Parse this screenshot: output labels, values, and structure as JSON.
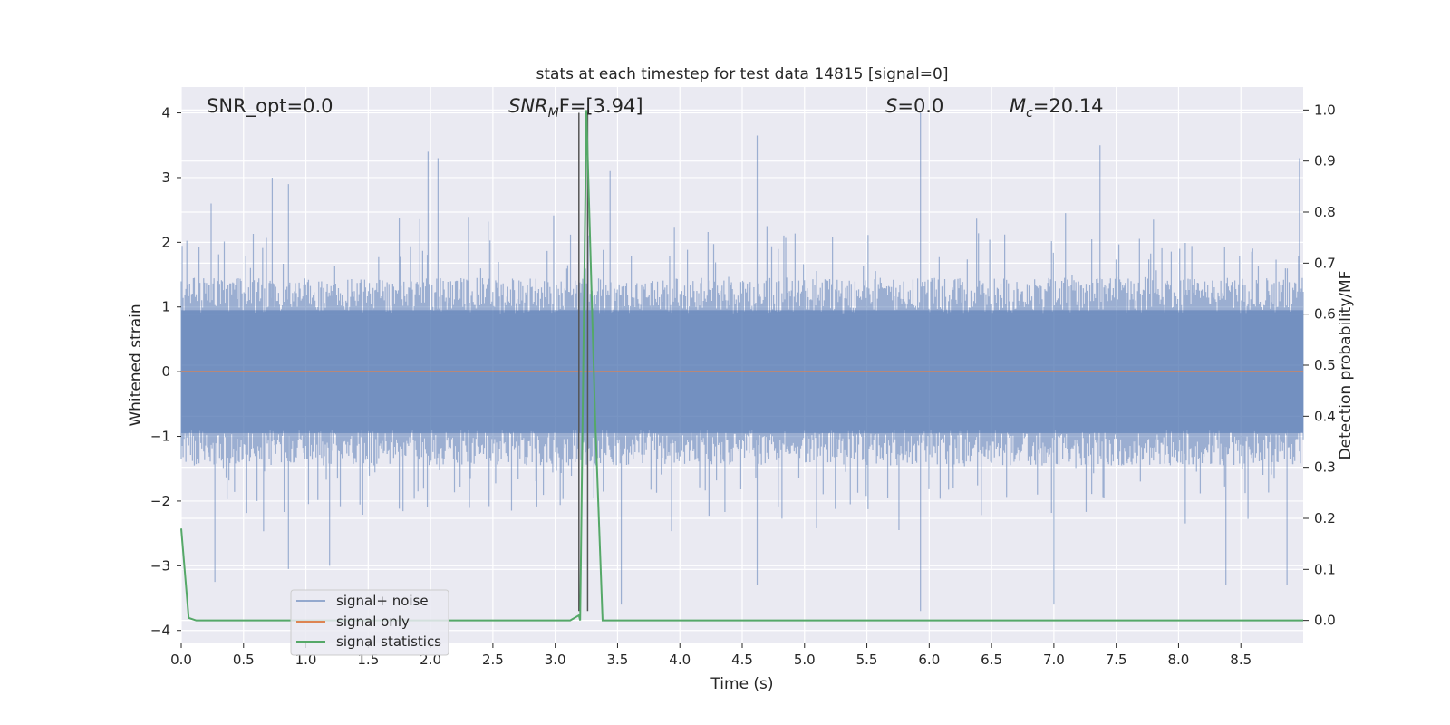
{
  "chart_data": {
    "type": "line",
    "title": "stats at each timestep for test data 14815 [signal=0]",
    "xlabel": "Time (s)",
    "ylabel": "Whitened strain",
    "ylabel_right": "Detection probability/MF",
    "xlim": [
      0.0,
      9.0
    ],
    "ylim": [
      -4.2,
      4.4
    ],
    "ylim_right": [
      -0.045,
      1.045
    ],
    "x_ticks": [
      0.0,
      0.5,
      1.0,
      1.5,
      2.0,
      2.5,
      3.0,
      3.5,
      4.0,
      4.5,
      5.0,
      5.5,
      6.0,
      6.5,
      7.0,
      7.5,
      8.0,
      8.5
    ],
    "x_tick_labels": [
      "0.0",
      "0.5",
      "1.0",
      "1.5",
      "2.0",
      "2.5",
      "3.0",
      "3.5",
      "4.0",
      "4.5",
      "5.0",
      "5.5",
      "6.0",
      "6.5",
      "7.0",
      "7.5",
      "8.0",
      "8.5"
    ],
    "y_ticks": [
      4,
      3,
      2,
      1,
      0,
      -1,
      -2,
      -3,
      -4
    ],
    "y_tick_labels": [
      "4",
      "3",
      "2",
      "1",
      "0",
      "−1",
      "−2",
      "−3",
      "−4"
    ],
    "y_right_ticks": [
      1.0,
      0.9,
      0.8,
      0.7,
      0.6,
      0.5,
      0.4,
      0.3,
      0.2,
      0.1,
      0.0
    ],
    "y_right_tick_labels": [
      "1.0",
      "0.9",
      "0.8",
      "0.7",
      "0.6",
      "0.5",
      "0.4",
      "0.3",
      "0.2",
      "0.1",
      "0.0"
    ],
    "grid": true,
    "legend_position": "lower-left",
    "series": [
      {
        "name": "signal+ noise",
        "color": "#4c72b0",
        "description_values": "dense noise band roughly within ±1.5 with spikes up to about ±4",
        "noise_amplitude": 1.45,
        "peaks": [
          {
            "x": 0.24,
            "y": 2.6
          },
          {
            "x": 0.73,
            "y": 3.0
          },
          {
            "x": 0.86,
            "y": 2.9
          },
          {
            "x": 1.98,
            "y": 3.4
          },
          {
            "x": 2.06,
            "y": 3.3
          },
          {
            "x": 3.44,
            "y": 3.1
          },
          {
            "x": 4.62,
            "y": 3.65
          },
          {
            "x": 5.93,
            "y": 4.0
          },
          {
            "x": 7.37,
            "y": 3.5
          },
          {
            "x": 8.97,
            "y": 3.3
          },
          {
            "x": 0.27,
            "y": -3.25
          },
          {
            "x": 0.86,
            "y": -3.05
          },
          {
            "x": 1.19,
            "y": -3.0
          },
          {
            "x": 3.53,
            "y": -3.6
          },
          {
            "x": 4.62,
            "y": -3.3
          },
          {
            "x": 5.93,
            "y": -3.7
          },
          {
            "x": 7.0,
            "y": -3.6
          },
          {
            "x": 8.38,
            "y": -3.3
          },
          {
            "x": 8.87,
            "y": -3.3
          }
        ]
      },
      {
        "name": "signal only",
        "color": "#dd8452",
        "x": [
          0.0,
          9.0
        ],
        "y": [
          0.0,
          0.0
        ]
      },
      {
        "name": "signal statistics",
        "color": "#55a868",
        "axis": "right",
        "x": [
          0.0,
          0.06,
          0.12,
          3.12,
          3.19,
          3.2,
          3.25,
          3.32,
          3.38,
          3.5,
          9.0
        ],
        "y": [
          0.18,
          0.005,
          0.0,
          0.0,
          0.01,
          0.0,
          1.0,
          0.4,
          0.0,
          0.0,
          0.0
        ]
      }
    ],
    "vlines": [
      3.19,
      3.26
    ],
    "annotations": {
      "snr_opt": "SNR_opt=0.0",
      "snr_mf_base": "SNR",
      "snr_mf_sub": "M",
      "snr_mf_rest": "F=[3.94]",
      "s_italic": "S",
      "s_rest": "=0.0",
      "mc_base": "M",
      "mc_sub": "c",
      "mc_rest": "=20.14"
    }
  }
}
